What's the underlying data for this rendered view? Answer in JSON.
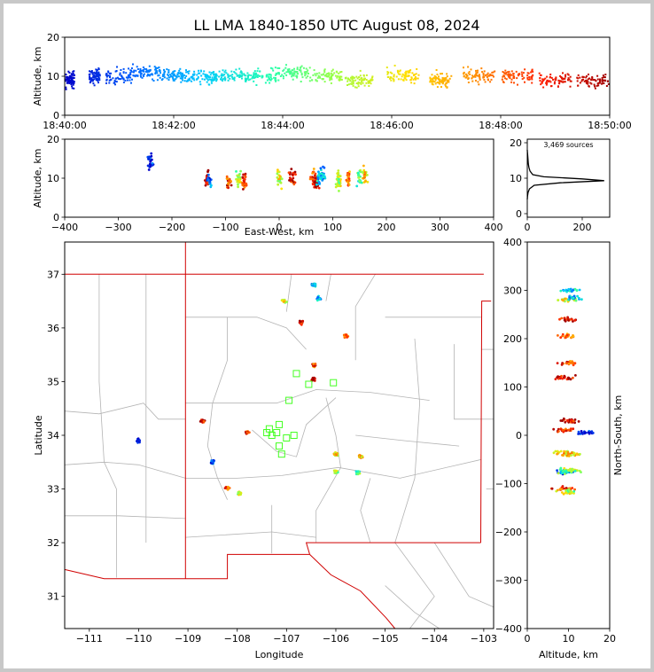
{
  "title": "LL LMA 1840-1850 UTC August 08, 2024",
  "chart_data": [
    {
      "id": "time-altitude",
      "type": "scatter",
      "xlabel": "",
      "ylabel": "Altitude, km",
      "xlim": [
        "18:40:00",
        "18:50:00"
      ],
      "ylim": [
        0,
        20
      ],
      "xticks": [
        "18:40:00",
        "18:42:00",
        "18:44:00",
        "18:46:00",
        "18:48:00",
        "18:50:00"
      ],
      "yticks": [
        0,
        10,
        20
      ],
      "color_by": "time",
      "colormap": [
        "#0000c8",
        "#0060ff",
        "#00c8ff",
        "#20ffb0",
        "#a0ff40",
        "#ffe000",
        "#ff9000",
        "#ff2000",
        "#a00000"
      ],
      "clusters": [
        {
          "t_min": 0.1,
          "alt_km": 9,
          "spread_min": 0.08
        },
        {
          "t_min": 0.55,
          "alt_km": 10,
          "spread_min": 0.1
        },
        {
          "t_min": 1.0,
          "alt_km": 10,
          "spread_min": 0.25
        },
        {
          "t_min": 1.5,
          "alt_km": 11,
          "spread_min": 0.25
        },
        {
          "t_min": 2.0,
          "alt_km": 10,
          "spread_min": 0.25
        },
        {
          "t_min": 2.5,
          "alt_km": 10,
          "spread_min": 0.3
        },
        {
          "t_min": 3.0,
          "alt_km": 10,
          "spread_min": 0.3
        },
        {
          "t_min": 3.6,
          "alt_km": 10,
          "spread_min": 0.3
        },
        {
          "t_min": 4.2,
          "alt_km": 11,
          "spread_min": 0.3
        },
        {
          "t_min": 4.8,
          "alt_km": 10,
          "spread_min": 0.3
        },
        {
          "t_min": 5.4,
          "alt_km": 9,
          "spread_min": 0.25
        },
        {
          "t_min": 6.2,
          "alt_km": 10,
          "spread_min": 0.3
        },
        {
          "t_min": 6.9,
          "alt_km": 9,
          "spread_min": 0.2
        },
        {
          "t_min": 7.6,
          "alt_km": 10,
          "spread_min": 0.3
        },
        {
          "t_min": 8.3,
          "alt_km": 10,
          "spread_min": 0.3
        },
        {
          "t_min": 9.0,
          "alt_km": 9,
          "spread_min": 0.3
        },
        {
          "t_min": 9.7,
          "alt_km": 9,
          "spread_min": 0.3
        }
      ]
    },
    {
      "id": "ew-altitude",
      "type": "scatter",
      "xlabel": "East-West, km",
      "ylabel": "Altitude, km",
      "xlim": [
        -400,
        400
      ],
      "ylim": [
        0,
        20
      ],
      "xticks": [
        -400,
        -300,
        -200,
        -100,
        0,
        100,
        200,
        300,
        400
      ],
      "yticks": [
        0,
        10,
        20
      ]
    },
    {
      "id": "altitude-histogram",
      "type": "line",
      "annotation": "3,469 sources",
      "xlim": [
        0,
        300
      ],
      "ylim": [
        -1,
        21
      ],
      "xticks": [
        0,
        200
      ],
      "yticks": [
        0,
        10,
        20
      ],
      "x": [
        0,
        1,
        3,
        8,
        25,
        120,
        280,
        200,
        60,
        20,
        10,
        6,
        4,
        3,
        2,
        1,
        0
      ],
      "y": [
        4,
        5,
        6,
        7,
        8,
        8.7,
        9.3,
        9.8,
        10.4,
        11,
        12,
        13,
        14,
        15,
        16,
        17,
        18
      ]
    },
    {
      "id": "plan-view-map",
      "type": "scatter",
      "xlabel": "Longitude",
      "ylabel": "Latitude",
      "xlim": [
        -111.5,
        -102.8
      ],
      "ylim": [
        30.4,
        37.6
      ],
      "xticks": [
        -111,
        -110,
        -109,
        -108,
        -107,
        -106,
        -105,
        -104,
        -103
      ],
      "yticks": [
        31,
        32,
        33,
        34,
        35,
        36,
        37
      ],
      "stations": [
        [
          -106.8,
          35.15
        ],
        [
          -106.95,
          34.65
        ],
        [
          -106.55,
          34.95
        ],
        [
          -106.05,
          34.98
        ],
        [
          -107.15,
          34.2
        ],
        [
          -107.2,
          34.05
        ],
        [
          -107.0,
          33.95
        ],
        [
          -107.15,
          33.8
        ],
        [
          -107.3,
          34.0
        ],
        [
          -107.1,
          33.65
        ],
        [
          -106.85,
          34.0
        ],
        [
          -107.4,
          34.05
        ],
        [
          -107.35,
          34.12
        ]
      ]
    },
    {
      "id": "altitude-ns",
      "type": "scatter",
      "xlabel": "Altitude, km",
      "ylabel": "North-South, km",
      "xlim": [
        0,
        20
      ],
      "ylim": [
        -400,
        400
      ],
      "xticks": [
        0,
        10,
        20
      ],
      "yticks": [
        -400,
        -300,
        -200,
        -100,
        0,
        100,
        200,
        300,
        400
      ]
    }
  ],
  "storm_cells": [
    {
      "lon": -108.7,
      "lat": 34.27,
      "ns_km": 30,
      "ew_km": -135,
      "alt_km": 10,
      "t_min": 9.5
    },
    {
      "lon": -108.5,
      "lat": 33.5,
      "ns_km": -75,
      "ew_km": -130,
      "alt_km": 9,
      "t_min": 1.2
    },
    {
      "lon": -108.2,
      "lat": 33.02,
      "ns_km": -110,
      "ew_km": -95,
      "alt_km": 9,
      "t_min": 8.6
    },
    {
      "lon": -107.95,
      "lat": 32.92,
      "ns_km": -118,
      "ew_km": -75,
      "alt_km": 10,
      "t_min": 5.2
    },
    {
      "lon": -107.8,
      "lat": 34.05,
      "ns_km": 10,
      "ew_km": -65,
      "alt_km": 9,
      "t_min": 9.0
    },
    {
      "lon": -107.05,
      "lat": 36.5,
      "ns_km": 280,
      "ew_km": 0,
      "alt_km": 10,
      "t_min": 5.8
    },
    {
      "lon": -106.7,
      "lat": 36.1,
      "ns_km": 240,
      "ew_km": 25,
      "alt_km": 10,
      "t_min": 9.3
    },
    {
      "lon": -106.45,
      "lat": 35.3,
      "ns_km": 150,
      "ew_km": 65,
      "alt_km": 10,
      "t_min": 8.4
    },
    {
      "lon": -106.45,
      "lat": 35.05,
      "ns_km": 120,
      "ew_km": 70,
      "alt_km": 9,
      "t_min": 9.6
    },
    {
      "lon": -106.35,
      "lat": 36.55,
      "ns_km": 285,
      "ew_km": 80,
      "alt_km": 11,
      "t_min": 2.0
    },
    {
      "lon": -105.8,
      "lat": 35.85,
      "ns_km": 205,
      "ew_km": 130,
      "alt_km": 10,
      "t_min": 8.0
    },
    {
      "lon": -106.0,
      "lat": 33.65,
      "ns_km": -35,
      "ew_km": 110,
      "alt_km": 9,
      "t_min": 6.3
    },
    {
      "lon": -106.0,
      "lat": 33.32,
      "ns_km": -72,
      "ew_km": 112,
      "alt_km": 10,
      "t_min": 5.0
    },
    {
      "lon": -105.5,
      "lat": 33.6,
      "ns_km": -40,
      "ew_km": 160,
      "alt_km": 11,
      "t_min": 6.5
    },
    {
      "lon": -106.45,
      "lat": 36.8,
      "ns_km": 300,
      "ew_km": 75,
      "alt_km": 10,
      "t_min": 2.6
    },
    {
      "lon": -105.55,
      "lat": 33.3,
      "ns_km": -75,
      "ew_km": 150,
      "alt_km": 10,
      "t_min": 4.0
    },
    {
      "lon": -110.0,
      "lat": 33.9,
      "ns_km": 5,
      "ew_km": -240,
      "alt_km": 14,
      "t_min": 0.5
    }
  ],
  "colors": {
    "border_outer": "#c8c8c8",
    "state_border": "#d00000",
    "county_border": "#b4b4b4",
    "station": "#44ff22",
    "grid": "#dddddd"
  }
}
